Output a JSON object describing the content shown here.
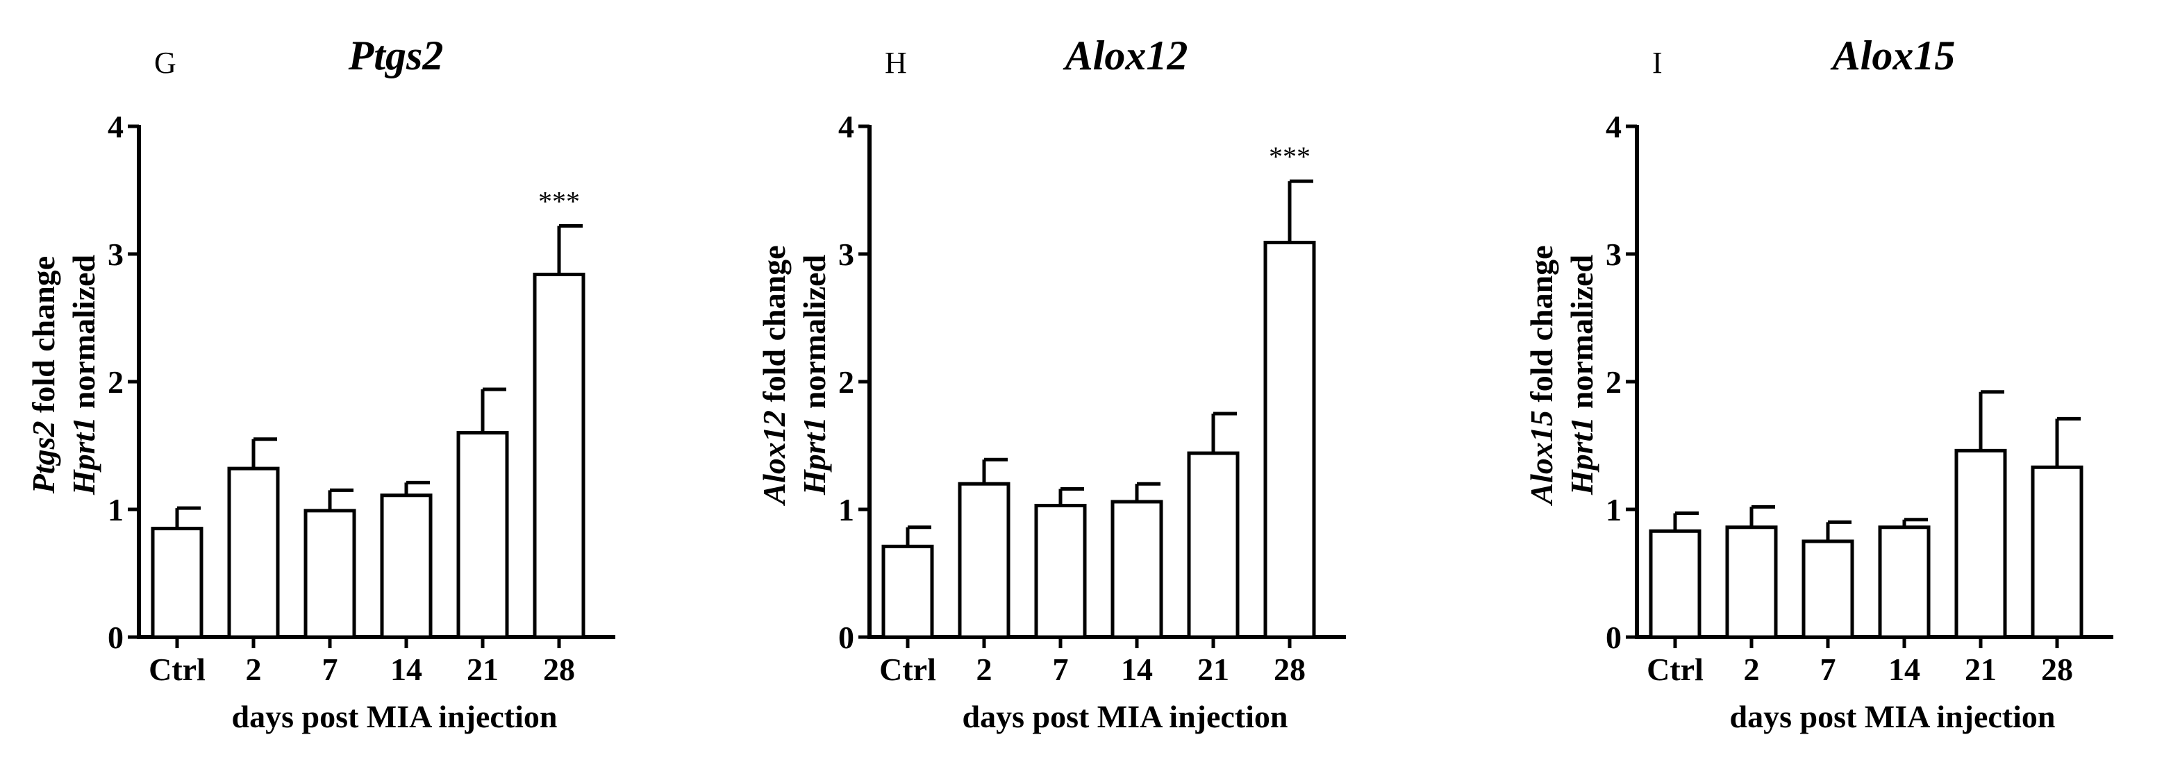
{
  "chart_data": [
    {
      "type": "bar",
      "panel_label": "G",
      "title": "Ptgs2",
      "ylabel_line1": {
        "italic": "Ptgs2",
        "rest": " fold change"
      },
      "ylabel_line2": {
        "italic": "Hprt1",
        "rest": " normalized"
      },
      "xlabel": "days post MIA injection",
      "categories": [
        "Ctrl",
        "2",
        "7",
        "14",
        "21",
        "28"
      ],
      "values": [
        0.85,
        1.32,
        0.99,
        1.11,
        1.6,
        2.84
      ],
      "errors": [
        0.16,
        0.23,
        0.16,
        0.1,
        0.34,
        0.38
      ],
      "annotations": [
        "",
        "",
        "",
        "",
        "",
        "***"
      ],
      "yticks": [
        0,
        1,
        2,
        3,
        4
      ],
      "ylim": [
        0,
        4
      ]
    },
    {
      "type": "bar",
      "panel_label": "H",
      "title": "Alox12",
      "ylabel_line1": {
        "italic": "Alox12",
        "rest": " fold change"
      },
      "ylabel_line2": {
        "italic": "Hprt1",
        "rest": " normalized"
      },
      "xlabel": "days post MIA injection",
      "categories": [
        "Ctrl",
        "2",
        "7",
        "14",
        "21",
        "28"
      ],
      "values": [
        0.71,
        1.2,
        1.03,
        1.06,
        1.44,
        3.09
      ],
      "errors": [
        0.15,
        0.19,
        0.13,
        0.14,
        0.31,
        0.48
      ],
      "annotations": [
        "",
        "",
        "",
        "",
        "",
        "***"
      ],
      "yticks": [
        0,
        1,
        2,
        3,
        4
      ],
      "ylim": [
        0,
        4
      ]
    },
    {
      "type": "bar",
      "panel_label": "I",
      "title": "Alox15",
      "ylabel_line1": {
        "italic": "Alox15",
        "rest": " fold change"
      },
      "ylabel_line2": {
        "italic": "Hprt1",
        "rest": " normalized"
      },
      "xlabel": "days post MIA injection",
      "categories": [
        "Ctrl",
        "2",
        "7",
        "14",
        "21",
        "28"
      ],
      "values": [
        0.83,
        0.86,
        0.75,
        0.86,
        1.46,
        1.33
      ],
      "errors": [
        0.14,
        0.16,
        0.15,
        0.06,
        0.46,
        0.38
      ],
      "annotations": [
        "",
        "",
        "",
        "",
        "",
        ""
      ],
      "yticks": [
        0,
        1,
        2,
        3,
        4
      ],
      "ylim": [
        0,
        4
      ]
    }
  ]
}
